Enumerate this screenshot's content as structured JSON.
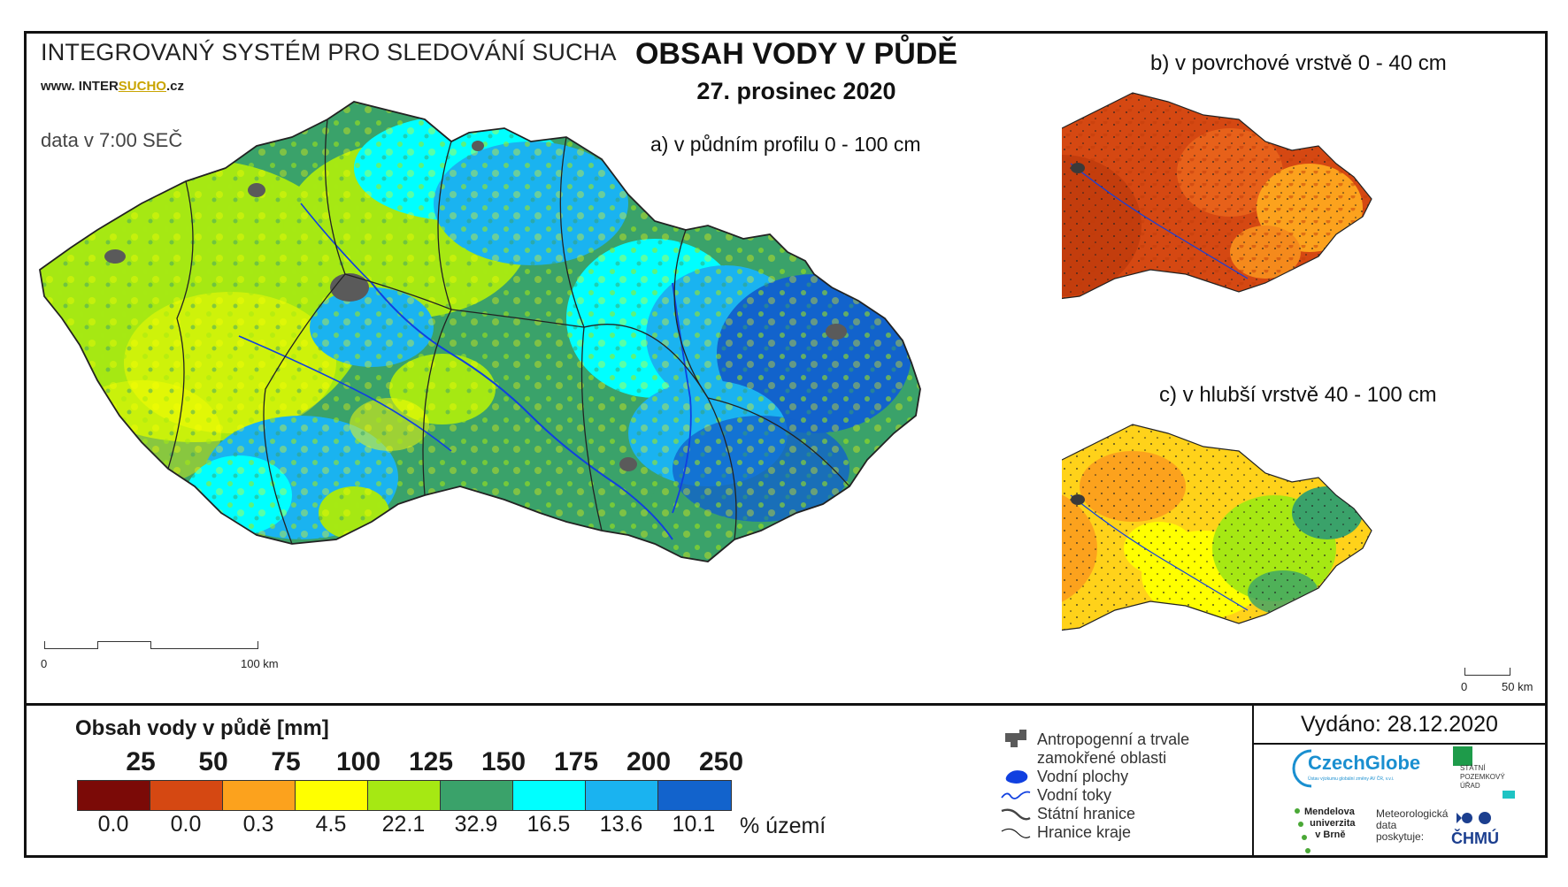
{
  "header": {
    "system_title": "INTEGROVANÝ SYSTÉM PRO SLEDOVÁNÍ SUCHA",
    "website_prefix": "www. INTER",
    "website_highlight": "SUCHO",
    "website_suffix": ".cz",
    "data_time": "data v 7:00 SEČ",
    "main_title": "OBSAH VODY V PŮDĚ",
    "date": "27. prosinec 2020"
  },
  "maps": {
    "a_label": "a) v půdním profilu 0 - 100 cm",
    "b_label": "b) v povrchové vrstvě 0 - 40 cm",
    "c_label": "c) v hlubší vrstvě 40 - 100 cm",
    "scale_main": {
      "zero": "0",
      "end": "100 km"
    },
    "scale_small": {
      "zero": "0",
      "end": "50 km"
    }
  },
  "legend": {
    "title": "Obsah vody v půdě  [mm]",
    "thresholds": [
      "25",
      "50",
      "75",
      "100",
      "125",
      "150",
      "175",
      "200",
      "250"
    ],
    "classes": [
      {
        "color": "#7b0a07",
        "percent": "0.0"
      },
      {
        "color": "#d54812",
        "percent": "0.0"
      },
      {
        "color": "#fca21d",
        "percent": "0.3"
      },
      {
        "color": "#ffff00",
        "percent": "4.5"
      },
      {
        "color": "#a6e813",
        "percent": "22.1"
      },
      {
        "color": "#3aa26a",
        "percent": "32.9"
      },
      {
        "color": "#00ffff",
        "percent": "16.5"
      },
      {
        "color": "#1ab3f0",
        "percent": "13.6"
      },
      {
        "color": "#1263cc",
        "percent": "10.1"
      }
    ],
    "percent_unit": "% území"
  },
  "symbols": {
    "anthropogenic_line1": "Antropogenní a trvale",
    "anthropogenic_line2": "zamokřené oblasti",
    "water_bodies": "Vodní plochy",
    "water_streams": "Vodní toky",
    "state_border": "Státní hranice",
    "region_border": "Hranice kraje"
  },
  "footer": {
    "issued": "Vydáno: 28.12.2020",
    "logo_czechglobe": "CzechGlobe",
    "logo_czechglobe_sub": "Ústav výzkumu globální změny AV ČR, v.v.i.",
    "logo_spu_line1": "STÁTNÍ",
    "logo_spu_line2": "POZEMKOVÝ",
    "logo_spu_line3": "ÚŘAD",
    "logo_mendel_line1": "Mendelova",
    "logo_mendel_line2": "univerzita",
    "logo_mendel_line3": "v Brně",
    "met_line1": "Meteorologická",
    "met_line2": "data",
    "met_line3": "poskytuje:",
    "chmu": "ČHMÚ"
  },
  "colors": {
    "frame": "#111111",
    "anthropogenic": "#5a5a5a",
    "water": "#1040e0",
    "czechglobe_blue": "#1a8fd0",
    "spu_green": "#1e9b4a",
    "mendel_green": "#4aa836",
    "chmu_blue": "#1c3f8f"
  }
}
